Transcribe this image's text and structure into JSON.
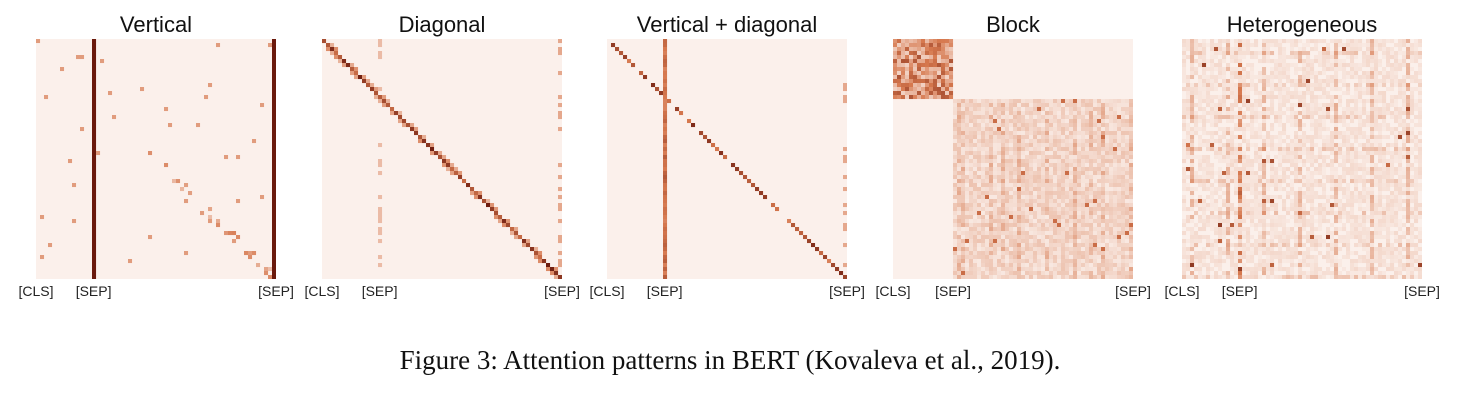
{
  "chart_data": [
    {
      "type": "heatmap",
      "title": "Vertical",
      "pattern": "vertical",
      "tick_labels": [
        "[CLS]",
        "[SEP]",
        "[SEP]"
      ],
      "tick_positions": [
        0,
        0.24,
        1.0
      ],
      "vertical_columns": [
        0.24,
        1.0
      ],
      "block_split": null,
      "colormap": "Reds-brown"
    },
    {
      "type": "heatmap",
      "title": "Diagonal",
      "pattern": "diagonal",
      "tick_labels": [
        "[CLS]",
        "[SEP]",
        "[SEP]"
      ],
      "tick_positions": [
        0,
        0.24,
        1.0
      ],
      "vertical_columns": [],
      "block_split": null,
      "colormap": "Reds-brown"
    },
    {
      "type": "heatmap",
      "title": "Vertical + diagonal",
      "pattern": "vertical_diagonal",
      "tick_labels": [
        "[CLS]",
        "[SEP]",
        "[SEP]"
      ],
      "tick_positions": [
        0,
        0.24,
        1.0
      ],
      "vertical_columns": [
        0.24
      ],
      "block_split": null,
      "colormap": "Reds-brown"
    },
    {
      "type": "heatmap",
      "title": "Block",
      "pattern": "block",
      "tick_labels": [
        "[CLS]",
        "[SEP]",
        "[SEP]"
      ],
      "tick_positions": [
        0,
        0.25,
        1.0
      ],
      "vertical_columns": [],
      "block_split": 0.25,
      "colormap": "Reds-brown"
    },
    {
      "type": "heatmap",
      "title": "Heterogeneous",
      "pattern": "heterogeneous",
      "tick_labels": [
        "[CLS]",
        "[SEP]",
        "[SEP]"
      ],
      "tick_positions": [
        0,
        0.24,
        1.0
      ],
      "vertical_columns": [],
      "block_split": null,
      "colormap": "Reds-brown"
    }
  ],
  "caption": "Figure 3: Attention patterns in BERT (Kovaleva et al., 2019).",
  "colors": {
    "low": "#fbf0eb",
    "high": "#5e0e05"
  }
}
